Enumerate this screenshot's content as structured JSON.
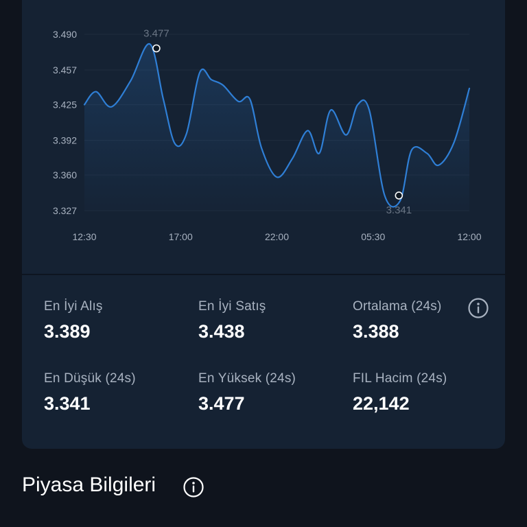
{
  "chart_data": {
    "type": "line",
    "x_ticks": [
      "12:30",
      "17:00",
      "22:00",
      "05:30",
      "12:00"
    ],
    "y_ticks": [
      "3.490",
      "3.457",
      "3.425",
      "3.392",
      "3.360",
      "3.327"
    ],
    "ylim": [
      3.327,
      3.49
    ],
    "grid": true,
    "series": [
      {
        "x": [
          0,
          0.03,
          0.07,
          0.12,
          0.17,
          0.205,
          0.235,
          0.265,
          0.3,
          0.33,
          0.36,
          0.4,
          0.43,
          0.46,
          0.5,
          0.54,
          0.58,
          0.61,
          0.64,
          0.68,
          0.71,
          0.74,
          0.78,
          0.82,
          0.85,
          0.89,
          0.92,
          0.96,
          1.0
        ],
        "values": [
          3.425,
          3.437,
          3.423,
          3.447,
          3.481,
          3.43,
          3.389,
          3.398,
          3.455,
          3.448,
          3.443,
          3.428,
          3.43,
          3.385,
          3.358,
          3.375,
          3.401,
          3.38,
          3.42,
          3.397,
          3.425,
          3.42,
          3.341,
          3.336,
          3.383,
          3.38,
          3.369,
          3.39,
          3.44
        ]
      }
    ],
    "annotations": [
      {
        "label": "3.477",
        "x": 0.17,
        "value": 3.477
      },
      {
        "label": "3.341",
        "x": 0.8,
        "value": 3.341
      }
    ],
    "colors": {
      "line": "#2f7fd6",
      "marker": "#ffffff",
      "grid": "#1f2c3d"
    }
  },
  "stats": [
    {
      "label": "En İyi Alış",
      "value": "3.389"
    },
    {
      "label": "En İyi Satış",
      "value": "3.438"
    },
    {
      "label": "Ortalama (24s)",
      "value": "3.388"
    },
    {
      "label": "En Düşük (24s)",
      "value": "3.341"
    },
    {
      "label": "En Yüksek (24s)",
      "value": "3.477"
    },
    {
      "label": "FIL Hacim (24s)",
      "value": "22,142"
    }
  ],
  "section": {
    "title": "Piyasa Bilgileri"
  },
  "icons": {
    "average_info": "info-circle-icon",
    "section_info": "info-circle-icon"
  }
}
